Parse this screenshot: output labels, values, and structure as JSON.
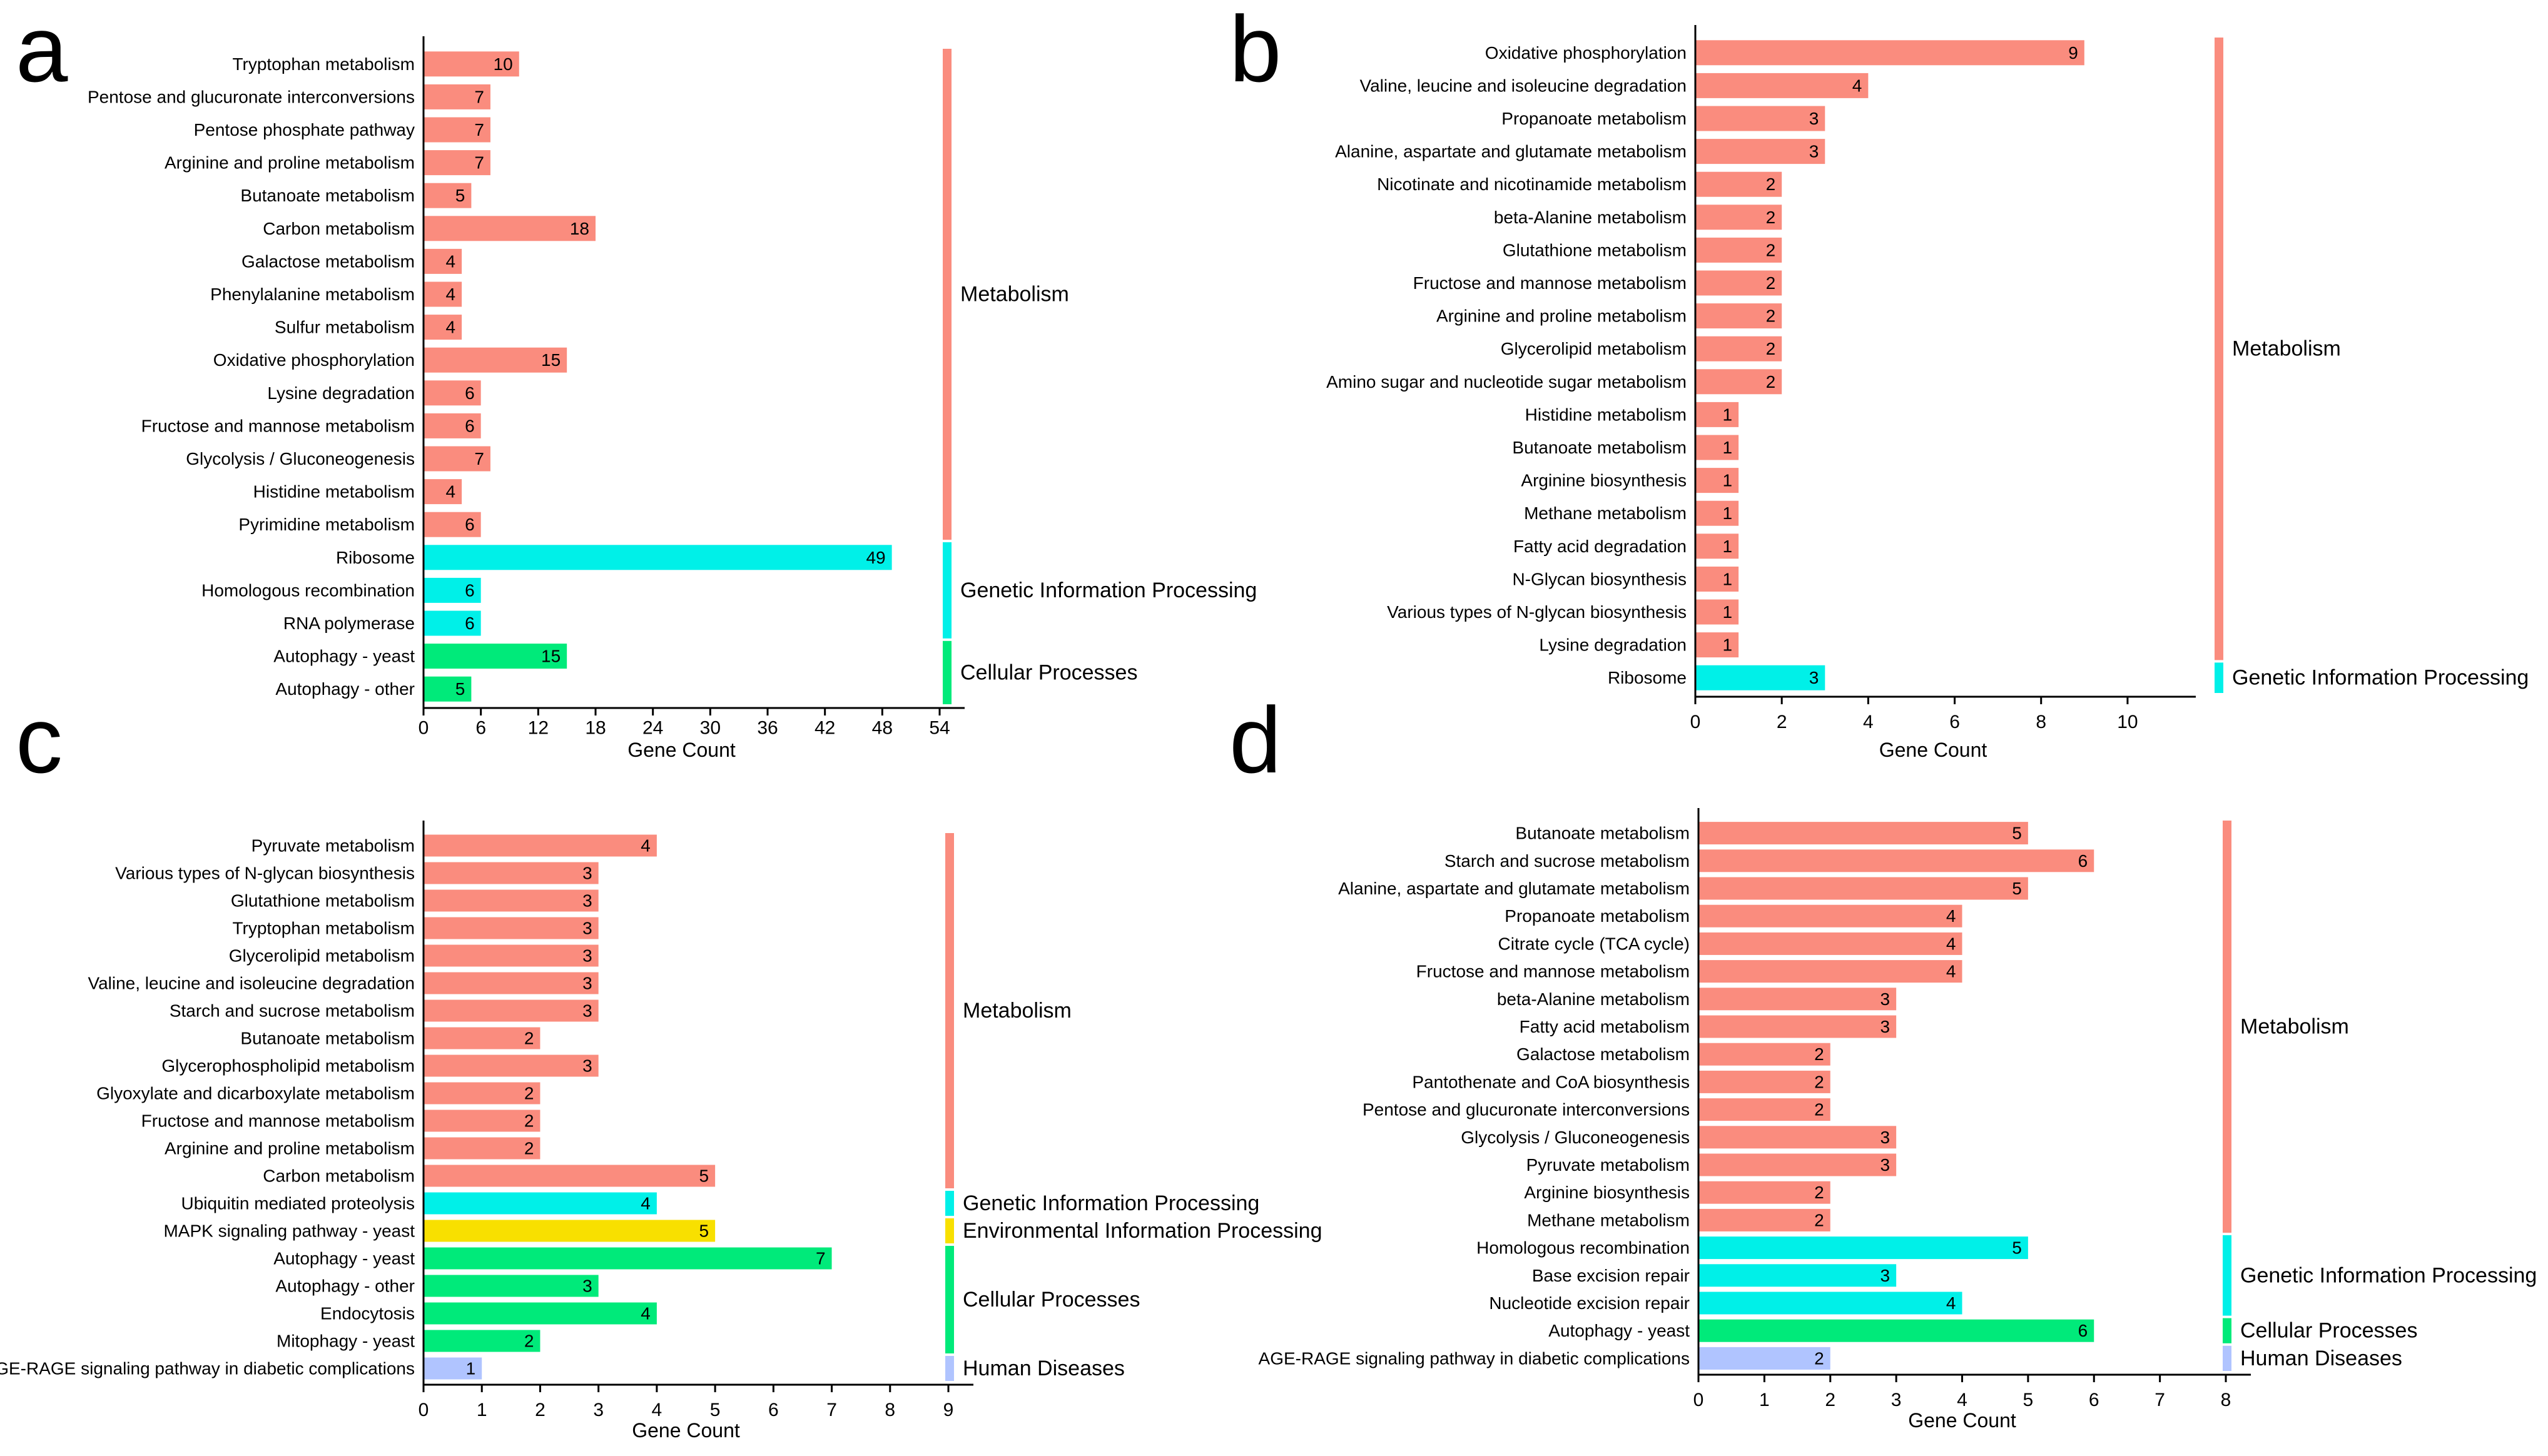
{
  "colors": {
    "Metabolism": "#FA8C7E",
    "Genetic Information Processing": "#00F0E8",
    "Cellular Processes": "#00EA7A",
    "Environmental Information Processing": "#F8E000",
    "Human Diseases": "#B0C4FF"
  },
  "chart_data": [
    {
      "type": "bar",
      "orientation": "horizontal",
      "panel": "a",
      "xlabel": "Gene Count",
      "xlim": [
        0,
        54
      ],
      "xticks": [
        0,
        6,
        12,
        18,
        24,
        30,
        36,
        42,
        48,
        54
      ],
      "categories": [
        "Tryptophan metabolism",
        "Pentose and glucuronate interconversions",
        "Pentose phosphate pathway",
        "Arginine and proline metabolism",
        "Butanoate metabolism",
        "Carbon metabolism",
        "Galactose metabolism",
        "Phenylalanine metabolism",
        "Sulfur metabolism",
        "Oxidative phosphorylation",
        "Lysine degradation",
        "Fructose and mannose metabolism",
        "Glycolysis / Gluconeogenesis",
        "Histidine metabolism",
        "Pyrimidine metabolism",
        "Ribosome",
        "Homologous recombination",
        "RNA polymerase",
        "Autophagy - yeast",
        "Autophagy - other"
      ],
      "values": [
        10,
        7,
        7,
        7,
        5,
        18,
        4,
        4,
        4,
        15,
        6,
        6,
        7,
        4,
        6,
        49,
        6,
        6,
        15,
        5
      ],
      "groups": [
        {
          "name": "Metabolism",
          "count": 15
        },
        {
          "name": "Genetic Information Processing",
          "count": 3
        },
        {
          "name": "Cellular Processes",
          "count": 2
        }
      ]
    },
    {
      "type": "bar",
      "orientation": "horizontal",
      "panel": "b",
      "xlabel": "Gene Count",
      "xlim": [
        0,
        11
      ],
      "xticks": [
        0,
        2,
        4,
        6,
        8,
        10
      ],
      "categories": [
        "Oxidative phosphorylation",
        "Valine, leucine and isoleucine degradation",
        "Propanoate metabolism",
        "Alanine, aspartate and glutamate metabolism",
        "Nicotinate and nicotinamide metabolism",
        "beta-Alanine metabolism",
        "Glutathione metabolism",
        "Fructose and mannose metabolism",
        "Arginine and proline metabolism",
        "Glycerolipid metabolism",
        "Amino sugar and nucleotide sugar metabolism",
        "Histidine metabolism",
        "Butanoate metabolism",
        "Arginine biosynthesis",
        "Methane metabolism",
        "Fatty acid degradation",
        "N-Glycan biosynthesis",
        "Various types of N-glycan biosynthesis",
        "Lysine degradation",
        "Ribosome"
      ],
      "values": [
        9,
        4,
        3,
        3,
        2,
        2,
        2,
        2,
        2,
        2,
        2,
        1,
        1,
        1,
        1,
        1,
        1,
        1,
        1,
        3
      ],
      "groups": [
        {
          "name": "Metabolism",
          "count": 19
        },
        {
          "name": "Genetic Information Processing",
          "count": 1
        }
      ]
    },
    {
      "type": "bar",
      "orientation": "horizontal",
      "panel": "c",
      "xlabel": "Gene Count",
      "xlim": [
        0,
        9
      ],
      "xticks": [
        0,
        1,
        2,
        3,
        4,
        5,
        6,
        7,
        8,
        9
      ],
      "categories": [
        "Pyruvate metabolism",
        "Various types of N-glycan biosynthesis",
        "Glutathione metabolism",
        "Tryptophan metabolism",
        "Glycerolipid metabolism",
        "Valine, leucine and isoleucine degradation",
        "Starch and sucrose metabolism",
        "Butanoate metabolism",
        "Glycerophospholipid metabolism",
        "Glyoxylate and dicarboxylate metabolism",
        "Fructose and mannose metabolism",
        "Arginine and proline metabolism",
        "Carbon metabolism",
        "Ubiquitin mediated proteolysis",
        "MAPK signaling pathway - yeast",
        "Autophagy - yeast",
        "Autophagy - other",
        "Endocytosis",
        "Mitophagy - yeast",
        "AGE-RAGE signaling pathway in diabetic complications"
      ],
      "values": [
        4,
        3,
        3,
        3,
        3,
        3,
        3,
        2,
        3,
        2,
        2,
        2,
        5,
        4,
        5,
        7,
        3,
        4,
        2,
        1
      ],
      "groups": [
        {
          "name": "Metabolism",
          "count": 13
        },
        {
          "name": "Genetic Information Processing",
          "count": 1
        },
        {
          "name": "Environmental Information Processing",
          "count": 1
        },
        {
          "name": "Cellular Processes",
          "count": 4
        },
        {
          "name": "Human Diseases",
          "count": 1
        }
      ]
    },
    {
      "type": "bar",
      "orientation": "horizontal",
      "panel": "d",
      "xlabel": "Gene Count",
      "xlim": [
        0,
        8
      ],
      "xticks": [
        0,
        1,
        2,
        3,
        4,
        5,
        6,
        7,
        8
      ],
      "categories": [
        "Butanoate metabolism",
        "Starch and sucrose metabolism",
        "Alanine, aspartate and glutamate metabolism",
        "Propanoate metabolism",
        "Citrate cycle (TCA cycle)",
        "Fructose and mannose metabolism",
        "beta-Alanine metabolism",
        "Fatty acid metabolism",
        "Galactose metabolism",
        "Pantothenate and CoA biosynthesis",
        "Pentose and glucuronate interconversions",
        "Glycolysis / Gluconeogenesis",
        "Pyruvate metabolism",
        "Arginine biosynthesis",
        "Methane metabolism",
        "Homologous recombination",
        "Base excision repair",
        "Nucleotide excision repair",
        "Autophagy - yeast",
        "AGE-RAGE signaling pathway in diabetic complications"
      ],
      "values": [
        5,
        6,
        5,
        4,
        4,
        4,
        3,
        3,
        2,
        2,
        2,
        3,
        3,
        2,
        2,
        5,
        3,
        4,
        6,
        2
      ],
      "groups": [
        {
          "name": "Metabolism",
          "count": 15
        },
        {
          "name": "Genetic Information Processing",
          "count": 3
        },
        {
          "name": "Cellular Processes",
          "count": 1
        },
        {
          "name": "Human Diseases",
          "count": 1
        }
      ]
    }
  ]
}
